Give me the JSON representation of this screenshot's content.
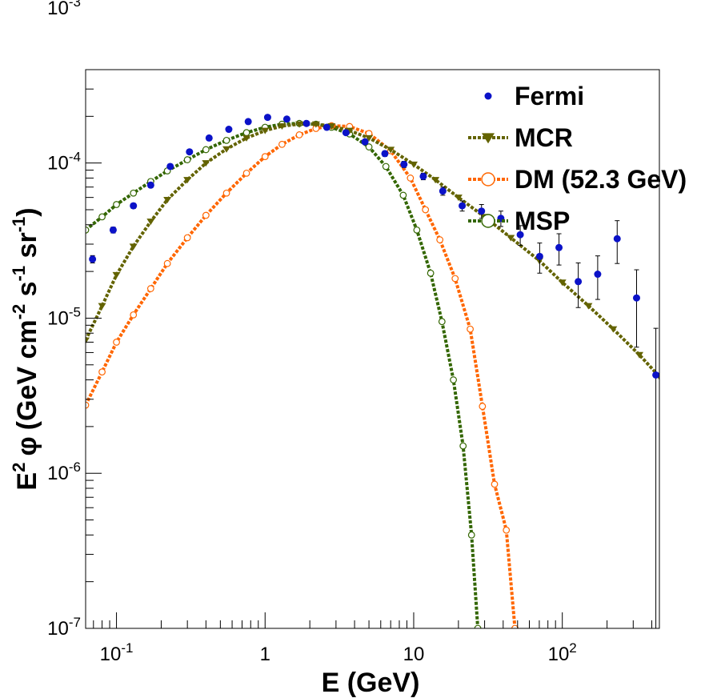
{
  "chart_data": {
    "type": "scatter",
    "title": "",
    "xlabel": "E (GeV)",
    "ylabel": {
      "base": "E",
      "sup1": "2",
      "phi": "φ",
      "u1": "(GeV cm",
      "sup2": "-2",
      "u2": " s",
      "sup3": "-1",
      "u3": " sr",
      "sup4": "-1",
      "u4": ")"
    },
    "xscale": "log",
    "yscale": "log",
    "xlim": [
      0.062,
      450
    ],
    "ylim": [
      1e-07,
      0.0004
    ],
    "grid": false,
    "legend_position": "top-right",
    "x_ticks": [
      {
        "value": 0.1,
        "base": "10",
        "exp": "-1"
      },
      {
        "value": 1,
        "base": "1",
        "exp": ""
      },
      {
        "value": 10,
        "base": "10",
        "exp": ""
      },
      {
        "value": 100,
        "base": "10",
        "exp": "2"
      }
    ],
    "y_ticks": [
      {
        "value": 1e-07,
        "base": "10",
        "exp": "-7"
      },
      {
        "value": 1e-06,
        "base": "10",
        "exp": "-6"
      },
      {
        "value": 1e-05,
        "base": "10",
        "exp": "-5"
      },
      {
        "value": 0.0001,
        "base": "10",
        "exp": "-4"
      },
      {
        "value": 0.001,
        "base": "10",
        "exp": "-3"
      }
    ],
    "series": [
      {
        "name": "Fermi",
        "style": "points",
        "color": "#0b12c8",
        "points": [
          [
            0.069,
            2.4e-05,
            1.3e-06
          ],
          [
            0.095,
            3.7e-05,
            1.6e-06
          ],
          [
            0.13,
            5.3e-05,
            2e-06
          ],
          [
            0.17,
            7.2e-05,
            2.5e-06
          ],
          [
            0.23,
            9.5e-05,
            3e-06
          ],
          [
            0.31,
            0.000118,
            3.5e-06
          ],
          [
            0.42,
            0.000145,
            4e-06
          ],
          [
            0.57,
            0.000165,
            4.5e-06
          ],
          [
            0.77,
            0.000185,
            5e-06
          ],
          [
            1.04,
            0.000197,
            5e-06
          ],
          [
            1.4,
            0.000192,
            5e-06
          ],
          [
            1.9,
            0.00018,
            5e-06
          ],
          [
            2.6,
            0.00017,
            5e-06
          ],
          [
            3.5,
            0.000157,
            5e-06
          ],
          [
            4.7,
            0.000137,
            5e-06
          ],
          [
            6.4,
            0.000115,
            4.5e-06
          ],
          [
            8.6,
            9.8e-05,
            4.5e-06
          ],
          [
            11.6,
            8.2e-05,
            4e-06
          ],
          [
            15.7,
            6.6e-05,
            4e-06
          ],
          [
            21.2,
            5.3e-05,
            4e-06
          ],
          [
            28.6,
            4.9e-05,
            5e-06
          ],
          [
            38.6,
            4.4e-05,
            5e-06
          ],
          [
            52.1,
            3.45e-05,
            5e-06
          ],
          [
            70.4,
            2.5e-05,
            5.5e-06
          ],
          [
            95,
            2.85e-05,
            6.5e-06
          ],
          [
            128,
            1.72e-05,
            5.5e-06
          ],
          [
            173,
            1.92e-05,
            6e-06
          ],
          [
            234,
            3.25e-05,
            1e-05
          ],
          [
            316,
            1.35e-05,
            7e-06
          ],
          [
            426,
            4.3e-06,
            4.3e-06
          ]
        ]
      },
      {
        "name": "MCR",
        "style": "line-triangles",
        "color": "#636300",
        "points": [
          [
            0.062,
            7.2e-06
          ],
          [
            0.08,
            1.2e-05
          ],
          [
            0.1,
            1.9e-05
          ],
          [
            0.13,
            2.9e-05
          ],
          [
            0.17,
            4.2e-05
          ],
          [
            0.22,
            5.8e-05
          ],
          [
            0.3,
            7.8e-05
          ],
          [
            0.4,
            0.0001
          ],
          [
            0.55,
            0.000123
          ],
          [
            0.75,
            0.000145
          ],
          [
            1,
            0.000162
          ],
          [
            1.3,
            0.000173
          ],
          [
            1.7,
            0.000178
          ],
          [
            2.2,
            0.000178
          ],
          [
            2.8,
            0.000173
          ],
          [
            3.7,
            0.000162
          ],
          [
            5,
            0.000145
          ],
          [
            7,
            0.000122
          ],
          [
            10,
            9.8e-05
          ],
          [
            14,
            7.8e-05
          ],
          [
            20,
            6e-05
          ],
          [
            30,
            4.5e-05
          ],
          [
            45,
            3.3e-05
          ],
          [
            70,
            2.35e-05
          ],
          [
            100,
            1.7e-05
          ],
          [
            150,
            1.2e-05
          ],
          [
            220,
            8.5e-06
          ],
          [
            330,
            5.8e-06
          ],
          [
            450,
            4.2e-06
          ]
        ]
      },
      {
        "name": "DM (52.3 GeV)",
        "style": "line-circles",
        "color": "#ff6600",
        "points": [
          [
            0.062,
            2.75e-06
          ],
          [
            0.08,
            4.5e-06
          ],
          [
            0.1,
            7e-06
          ],
          [
            0.13,
            1.05e-05
          ],
          [
            0.17,
            1.55e-05
          ],
          [
            0.22,
            2.25e-05
          ],
          [
            0.3,
            3.3e-05
          ],
          [
            0.4,
            4.6e-05
          ],
          [
            0.55,
            6.4e-05
          ],
          [
            0.75,
            8.6e-05
          ],
          [
            1,
            0.00011
          ],
          [
            1.3,
            0.000132
          ],
          [
            1.7,
            0.000152
          ],
          [
            2.2,
            0.000167
          ],
          [
            2.8,
            0.000174
          ],
          [
            3.7,
            0.000172
          ],
          [
            5,
            0.000155
          ],
          [
            7,
            0.00012
          ],
          [
            9.5,
            8e-05
          ],
          [
            12,
            5e-05
          ],
          [
            15,
            3.2e-05
          ],
          [
            19,
            1.8e-05
          ],
          [
            24,
            8.5e-06
          ],
          [
            29,
            2.7e-06
          ],
          [
            35,
            8.5e-07
          ],
          [
            42,
            4.3e-07
          ],
          [
            48,
            1e-07
          ]
        ]
      },
      {
        "name": "MSP",
        "style": "line-circles",
        "color": "#336600",
        "points": [
          [
            0.062,
            3.7e-05
          ],
          [
            0.08,
            4.5e-05
          ],
          [
            0.1,
            5.4e-05
          ],
          [
            0.13,
            6.4e-05
          ],
          [
            0.17,
            7.6e-05
          ],
          [
            0.22,
            8.9e-05
          ],
          [
            0.3,
            0.000105
          ],
          [
            0.4,
            0.000122
          ],
          [
            0.55,
            0.00014
          ],
          [
            0.75,
            0.000157
          ],
          [
            1,
            0.00017
          ],
          [
            1.3,
            0.000178
          ],
          [
            1.7,
            0.00018
          ],
          [
            2.2,
            0.000178
          ],
          [
            2.8,
            0.00017
          ],
          [
            3.7,
            0.000154
          ],
          [
            5,
            0.000127
          ],
          [
            6.5,
            9.5e-05
          ],
          [
            8.5,
            6.2e-05
          ],
          [
            10.5,
            3.7e-05
          ],
          [
            13,
            1.95e-05
          ],
          [
            15.5,
            9.5e-06
          ],
          [
            18.5,
            4e-06
          ],
          [
            21.5,
            1.5e-06
          ],
          [
            24.5,
            4e-07
          ],
          [
            27,
            1e-07
          ]
        ]
      }
    ]
  }
}
